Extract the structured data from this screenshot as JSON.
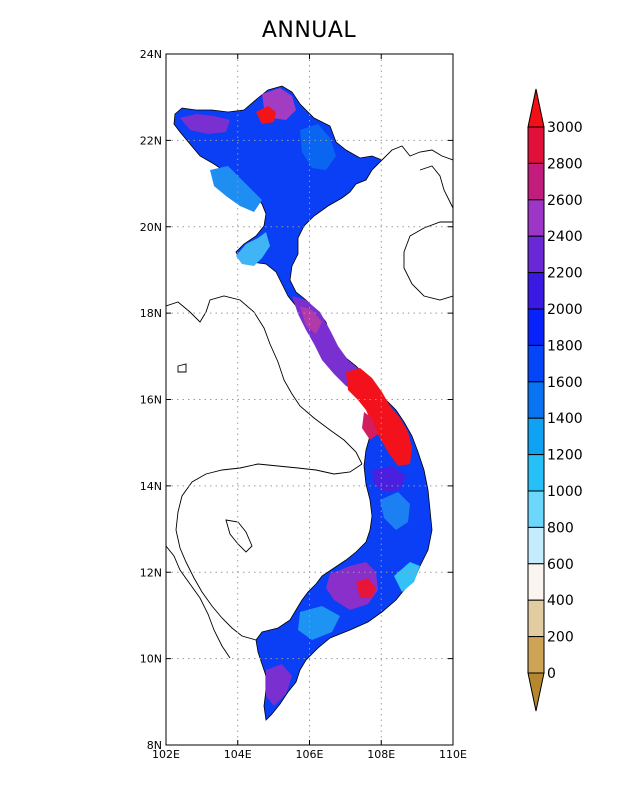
{
  "title": "ANNUAL",
  "map": {
    "lon_range": [
      102,
      110
    ],
    "lat_range": [
      8,
      24
    ],
    "x_ticks": [
      {
        "value": 102,
        "label": "102E"
      },
      {
        "value": 104,
        "label": "104E"
      },
      {
        "value": 106,
        "label": "106E"
      },
      {
        "value": 108,
        "label": "108E"
      },
      {
        "value": 110,
        "label": "110E"
      }
    ],
    "y_ticks": [
      {
        "value": 8,
        "label": "8N"
      },
      {
        "value": 10,
        "label": "10N"
      },
      {
        "value": 12,
        "label": "12N"
      },
      {
        "value": 14,
        "label": "14N"
      },
      {
        "value": 16,
        "label": "16N"
      },
      {
        "value": 18,
        "label": "18N"
      },
      {
        "value": 20,
        "label": "20N"
      },
      {
        "value": 22,
        "label": "22N"
      },
      {
        "value": 24,
        "label": "24N"
      }
    ],
    "gridlines": "dotted"
  },
  "colorbar": {
    "levels": [
      "0",
      "200",
      "400",
      "600",
      "800",
      "1000",
      "1200",
      "1400",
      "1600",
      "1800",
      "2000",
      "2200",
      "2400",
      "2600",
      "2800",
      "3000"
    ],
    "colors": [
      "#b5882e",
      "#cda455",
      "#e2cda2",
      "#faf6ef",
      "#c4ecfd",
      "#6cd6fb",
      "#26bff8",
      "#0fa2f3",
      "#0a73f2",
      "#0345f7",
      "#0822fc",
      "#3a1ae3",
      "#6a28d6",
      "#9d35c6",
      "#c21c7c",
      "#e0103a",
      "#f30f16"
    ]
  }
}
